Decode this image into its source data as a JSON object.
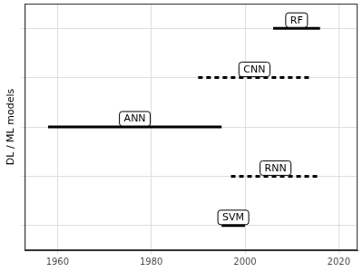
{
  "chart_data": {
    "type": "range",
    "ylabel": "DL / ML models",
    "categories": [
      "RF",
      "CNN",
      "ANN",
      "RNN",
      "SVM"
    ],
    "series": [
      {
        "line_style": "solid",
        "values": [
          [
            2006,
            2016
          ],
          null,
          [
            1958,
            1995
          ],
          null,
          [
            1995,
            2000
          ]
        ]
      },
      {
        "line_style": "dashed",
        "values": [
          null,
          [
            1990,
            2014
          ],
          null,
          [
            1997,
            2016
          ],
          null
        ]
      }
    ],
    "color": "#000000",
    "xlim": [
      1953,
      2024
    ],
    "xticks": [
      1960,
      1980,
      2000,
      2020
    ],
    "grid": true,
    "tick_labels": "x"
  }
}
